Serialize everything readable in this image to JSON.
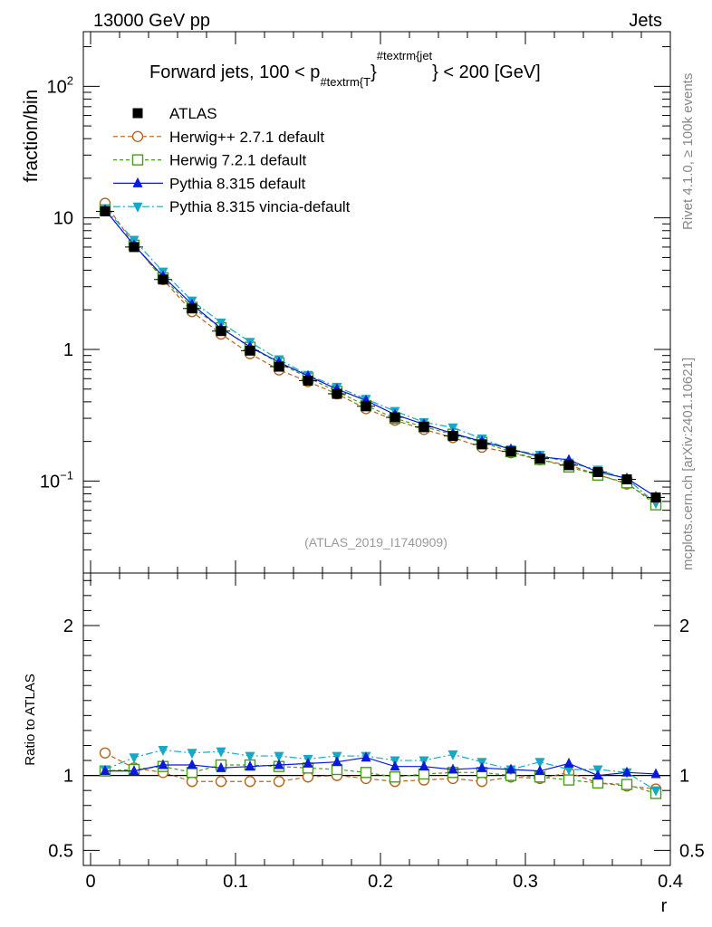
{
  "header": {
    "left": "13000 GeV pp",
    "right": "Jets"
  },
  "side_labels": {
    "rivet": "Rivet 4.1.0, ≥ 100k events",
    "mcplots": "mcplots.cern.ch [arXiv:2401.10621]"
  },
  "chart_data": {
    "type": "line",
    "title_main": "Forward jets, 100 < p",
    "title_sub": "#textrm{T",
    "title_brace": "}",
    "title_sup": "#textrm{jet",
    "title_sup_brace": "}",
    "title_tail": " < 200 [GeV]",
    "analysis_id": "(ATLAS_2019_I1740909)",
    "ylabel_top": "fraction/bin",
    "ylabel_bottom": "Ratio to ATLAS",
    "xlabel": "r",
    "xlim": [
      -0.005,
      0.4
    ],
    "ylim_top": [
      0.02,
      260
    ],
    "ylim_bottom": [
      0.4,
      2.35
    ],
    "x_ticks": [
      "0",
      "0.1",
      "0.2",
      "0.3",
      "0.4"
    ],
    "y_ticks_top": [
      {
        "base": "10",
        "exp": "2"
      },
      {
        "base": "10",
        "exp": ""
      },
      {
        "base": "1",
        "exp": ""
      },
      {
        "base": "10",
        "exp": "−1"
      }
    ],
    "y_ticks_bottom": [
      "2",
      "1",
      "0.5"
    ],
    "x": [
      0.01,
      0.03,
      0.05,
      0.07,
      0.09,
      0.11,
      0.13,
      0.15,
      0.17,
      0.19,
      0.21,
      0.23,
      0.25,
      0.27,
      0.29,
      0.31,
      0.33,
      0.35,
      0.37,
      0.39
    ],
    "series": [
      {
        "name": "ATLAS",
        "color": "#000000",
        "marker": "square-filled",
        "values": [
          11.2,
          6.0,
          3.4,
          2.05,
          1.38,
          0.98,
          0.74,
          0.58,
          0.46,
          0.37,
          0.305,
          0.258,
          0.22,
          0.19,
          0.168,
          0.148,
          0.132,
          0.117,
          0.103,
          0.075
        ],
        "ratio": [
          1,
          1,
          1,
          1,
          1,
          1,
          1,
          1,
          1,
          1,
          1,
          1,
          1,
          1,
          1,
          1,
          1,
          1,
          1,
          1
        ]
      },
      {
        "name": "Herwig++ 2.7.1 default",
        "color": "#b5651d",
        "marker": "circle-open",
        "values": [
          12.9,
          6.3,
          3.4,
          1.94,
          1.31,
          0.93,
          0.7,
          0.57,
          0.46,
          0.355,
          0.29,
          0.247,
          0.214,
          0.181,
          0.164,
          0.145,
          0.132,
          0.112,
          0.095,
          0.069
        ],
        "ratio": [
          1.15,
          1.05,
          1.02,
          0.96,
          0.96,
          0.96,
          0.96,
          0.99,
          1.0,
          0.98,
          0.96,
          0.97,
          0.98,
          0.96,
          0.99,
          0.98,
          1.02,
          0.95,
          0.93,
          0.91
        ]
      },
      {
        "name": "Herwig 7.2.1 default",
        "color": "#4a9a1a",
        "marker": "square-open",
        "values": [
          11.5,
          6.2,
          3.5,
          2.09,
          1.46,
          1.04,
          0.79,
          0.61,
          0.48,
          0.375,
          0.3,
          0.258,
          0.227,
          0.197,
          0.167,
          0.146,
          0.128,
          0.111,
          0.097,
          0.066
        ],
        "ratio": [
          1.03,
          1.04,
          1.06,
          1.02,
          1.07,
          1.07,
          1.06,
          1.05,
          1.04,
          1.02,
          0.99,
          1.01,
          1.02,
          1.02,
          1.0,
          0.99,
          0.97,
          0.95,
          0.94,
          0.88
        ]
      },
      {
        "name": "Pythia 8.315 default",
        "color": "#0a1ad8",
        "marker": "triangle-up-filled",
        "values": [
          11.5,
          6.2,
          3.6,
          2.2,
          1.45,
          1.05,
          0.8,
          0.63,
          0.5,
          0.41,
          0.32,
          0.27,
          0.23,
          0.2,
          0.175,
          0.153,
          0.145,
          0.117,
          0.105,
          0.076
        ],
        "ratio": [
          1.03,
          1.03,
          1.07,
          1.07,
          1.05,
          1.06,
          1.07,
          1.08,
          1.09,
          1.12,
          1.06,
          1.06,
          1.04,
          1.05,
          1.04,
          1.03,
          1.08,
          1.0,
          1.02,
          1.01
        ]
      },
      {
        "name": "Pythia 8.315 vincia-default",
        "color": "#17a8c4",
        "marker": "triangle-down-filled",
        "values": [
          11.7,
          6.8,
          3.9,
          2.35,
          1.6,
          1.14,
          0.84,
          0.64,
          0.52,
          0.42,
          0.34,
          0.28,
          0.255,
          0.21,
          0.174,
          0.158,
          0.138,
          0.122,
          0.104,
          0.068
        ],
        "ratio": [
          1.04,
          1.12,
          1.17,
          1.15,
          1.16,
          1.13,
          1.13,
          1.11,
          1.13,
          1.13,
          1.1,
          1.1,
          1.14,
          1.09,
          1.04,
          1.09,
          1.04,
          1.04,
          1.02,
          0.9
        ]
      }
    ]
  }
}
